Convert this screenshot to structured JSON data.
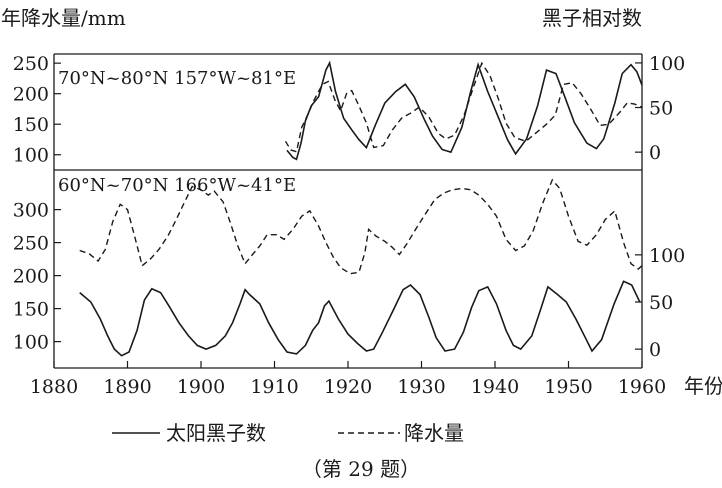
{
  "chart_data": {
    "type": "line",
    "left_axis_title": "年降水量/mm",
    "right_axis_title": "黑子相对数",
    "x_axis_title": "年份",
    "xlim": [
      1880,
      1960
    ],
    "x_ticks": [
      1880,
      1890,
      1900,
      1910,
      1920,
      1930,
      1940,
      1950,
      1960
    ],
    "legend": {
      "solid_label": "太阳黑子数",
      "dashed_label": "降水量",
      "placement": "bottom"
    },
    "caption": "（第 29 题）",
    "panels": [
      {
        "region": "70°N~80°N 157°W~81°E",
        "left_ylim": [
          75,
          265
        ],
        "left_ticks": [
          100,
          150,
          200,
          250
        ],
        "right_ylim": [
          -20,
          110
        ],
        "right_ticks": [
          0,
          50,
          100
        ],
        "series": [
          {
            "style": "solid",
            "axis": "right",
            "label_ref": "solid_label",
            "x": [
              1911.7,
              1912.5,
              1913.0,
              1913.6,
              1914.2,
              1915.0,
              1916.0,
              1917.0,
              1917.5,
              1918.3,
              1919.4,
              1920.5,
              1921.5,
              1922.5,
              1923.7,
              1925.0,
              1926.5,
              1927.8,
              1929.0,
              1930.3,
              1931.5,
              1932.8,
              1934.0,
              1935.5,
              1936.7,
              1937.7,
              1939.0,
              1940.5,
              1941.7,
              1942.8,
              1944.3,
              1945.8,
              1947.0,
              1948.3,
              1949.5,
              1950.8,
              1952.5,
              1953.8,
              1954.8,
              1956.3,
              1957.3,
              1958.5,
              1959.3,
              1960.0
            ],
            "y": [
              2,
              -6,
              -8,
              10,
              35,
              52,
              62,
              92,
              100,
              68,
              38,
              25,
              14,
              5,
              30,
              55,
              68,
              76,
              62,
              38,
              18,
              3,
              0,
              28,
              68,
              98,
              68,
              38,
              14,
              -2,
              15,
              52,
              92,
              88,
              62,
              33,
              10,
              4,
              15,
              55,
              88,
              98,
              90,
              75
            ]
          },
          {
            "style": "dashed",
            "axis": "left",
            "label_ref": "dashed_label",
            "x": [
              1911.5,
              1912.2,
              1913.0,
              1913.7,
              1914.5,
              1915.4,
              1916.5,
              1917.3,
              1918.2,
              1919.0,
              1919.8,
              1920.5,
              1921.5,
              1922.5,
              1923.5,
              1924.8,
              1926.0,
              1927.3,
              1928.5,
              1929.7,
              1931.0,
              1932.3,
              1933.3,
              1934.5,
              1935.8,
              1937.0,
              1938.2,
              1939.3,
              1940.5,
              1941.5,
              1942.7,
              1944.2,
              1945.5,
              1947.0,
              1948.2,
              1949.3,
              1950.5,
              1951.7,
              1953.0,
              1954.3,
              1955.5,
              1957.0,
              1958.0,
              1959.0,
              1960.0
            ],
            "y": [
              122,
              108,
              105,
              145,
              165,
              190,
              215,
              220,
              190,
              172,
              200,
              205,
              180,
              152,
              112,
              115,
              140,
              160,
              168,
              178,
              162,
              135,
              126,
              132,
              165,
              208,
              250,
              230,
              190,
              152,
              128,
              122,
              135,
              150,
              165,
              215,
              218,
              200,
              175,
              148,
              150,
              170,
              185,
              183,
              178
            ]
          }
        ]
      },
      {
        "region": "60°N~70°N 166°W~41°E",
        "left_ylim": [
          60,
          360
        ],
        "left_ticks": [
          100,
          150,
          200,
          250,
          300
        ],
        "right_ylim": [
          -20,
          190
        ],
        "right_ticks": [
          0,
          50,
          100
        ],
        "series": [
          {
            "style": "solid",
            "axis": "right",
            "label_ref": "solid_label",
            "x": [
              1883.5,
              1885.0,
              1886.3,
              1887.3,
              1888.2,
              1889.2,
              1890.2,
              1891.3,
              1892.3,
              1893.3,
              1894.5,
              1895.7,
              1897.0,
              1898.3,
              1899.5,
              1900.7,
              1902.0,
              1903.3,
              1904.3,
              1905.3,
              1906.0,
              1906.6,
              1908.0,
              1909.2,
              1910.5,
              1911.7,
              1913.0,
              1914.2,
              1915.2,
              1916.0,
              1916.8,
              1917.4,
              1918.7,
              1920.0,
              1921.3,
              1922.5,
              1923.5,
              1924.7,
              1926.2,
              1927.5,
              1928.5,
              1929.8,
              1931.0,
              1932.0,
              1933.2,
              1934.5,
              1935.7,
              1936.8,
              1937.8,
              1939.0,
              1940.2,
              1941.5,
              1942.5,
              1943.5,
              1945.0,
              1946.2,
              1947.2,
              1948.5,
              1949.7,
              1951.0,
              1952.3,
              1953.2,
              1954.5,
              1956.2,
              1957.5,
              1958.6,
              1959.7
            ],
            "y": [
              60,
              50,
              32,
              14,
              0,
              -7,
              -3,
              20,
              52,
              64,
              60,
              45,
              28,
              14,
              4,
              0,
              4,
              14,
              28,
              48,
              63,
              58,
              48,
              28,
              10,
              -3,
              -5,
              4,
              20,
              28,
              46,
              51,
              32,
              16,
              6,
              -2,
              0,
              18,
              42,
              63,
              68,
              58,
              34,
              12,
              -2,
              0,
              18,
              44,
              62,
              66,
              48,
              20,
              4,
              0,
              14,
              42,
              66,
              58,
              50,
              32,
              12,
              -2,
              10,
              48,
              72,
              68,
              50
            ]
          },
          {
            "style": "dashed",
            "axis": "left",
            "label_ref": "dashed_label",
            "x": [
              1883.5,
              1884.8,
              1886.0,
              1887.0,
              1888.0,
              1889.0,
              1890.0,
              1891.0,
              1892.0,
              1893.2,
              1894.3,
              1895.5,
              1896.5,
              1897.7,
              1898.8,
              1900.0,
              1901.0,
              1901.8,
              1903.0,
              1904.0,
              1905.0,
              1906.0,
              1907.0,
              1908.0,
              1909.0,
              1910.3,
              1911.3,
              1912.5,
              1913.7,
              1914.8,
              1916.0,
              1917.0,
              1918.0,
              1919.0,
              1920.3,
              1921.5,
              1922.3,
              1922.8,
              1923.8,
              1925.0,
              1926.0,
              1927.0,
              1928.0,
              1929.2,
              1930.5,
              1931.8,
              1933.0,
              1934.2,
              1935.5,
              1936.7,
              1937.8,
              1939.0,
              1940.2,
              1941.5,
              1942.8,
              1944.0,
              1945.2,
              1946.5,
              1947.8,
              1948.8,
              1950.0,
              1951.3,
              1952.5,
              1953.8,
              1955.0,
              1956.3,
              1957.5,
              1958.5,
              1959.5,
              1960.0
            ],
            "y": [
              238,
              233,
              222,
              240,
              282,
              308,
              300,
              258,
              215,
              226,
              240,
              260,
              282,
              310,
              335,
              330,
              322,
              328,
              312,
              280,
              245,
              218,
              232,
              245,
              262,
              262,
              255,
              270,
              290,
              298,
              275,
              250,
              228,
              212,
              203,
              205,
              235,
              270,
              260,
              252,
              243,
              232,
              248,
              270,
              293,
              315,
              325,
              330,
              332,
              330,
              322,
              308,
              290,
              255,
              238,
              245,
              268,
              310,
              345,
              332,
              290,
              252,
              246,
              262,
              285,
              298,
              250,
              218,
              210,
              215
            ]
          }
        ]
      }
    ]
  }
}
